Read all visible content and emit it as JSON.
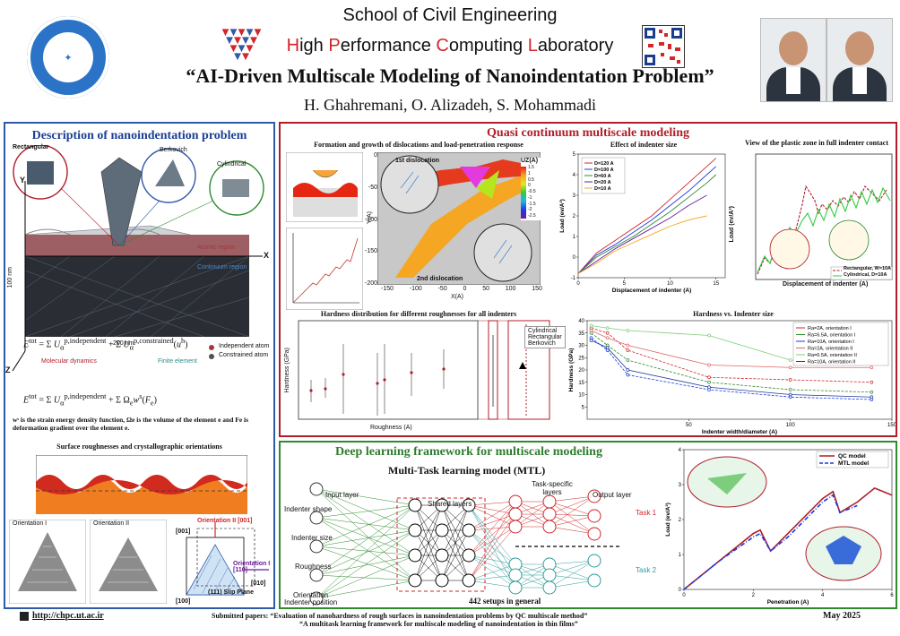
{
  "header": {
    "school": "School of Civil Engineering",
    "lab_parts": [
      {
        "cap": "H",
        "rest": "igh "
      },
      {
        "cap": "P",
        "rest": "erformance "
      },
      {
        "cap": "C",
        "rest": "omputing "
      },
      {
        "cap": "L",
        "rest": "aboratory"
      }
    ],
    "title": "“AI-Driven Multiscale Modeling of Nanoindentation Problem”",
    "authors": "H. Ghahremani, O. Alizadeh, S. Mohammadi"
  },
  "left_panel": {
    "title": "Description of nanoindentation problem",
    "indenters": [
      "Rectangular",
      "Berkovich",
      "Cylindrical"
    ],
    "regions": [
      "Atomic region",
      "Continuum region"
    ],
    "dims": {
      "height": "100 nm",
      "width": "200 nm"
    },
    "legend": [
      "Independent atom",
      "Constrained atom"
    ],
    "axis": {
      "x": "X",
      "y": "Y",
      "z": "Z"
    },
    "eq_labels": {
      "md": "Molecular dynamics",
      "fe": "Finite element"
    },
    "eq_note": "wˢ is the strain energy density function, Ωe is the volume of the element e and Fe is deformation gradient over the element e.",
    "rough_title": "Surface roughnesses and crystallographic orientations",
    "orientations": [
      "Orientation I",
      "Orientation II"
    ],
    "miller": {
      "o2": "Orientation II [001]",
      "o1": "Orientation I [110]",
      "a": "[001]",
      "b": "[010]",
      "c": "[100]",
      "slip": "(111) Slip Plane"
    }
  },
  "qc_panel": {
    "title": "Quasi continuum multiscale modeling",
    "sub1": "Formation and growth of dislocations and load-penetration response",
    "sub1_labels": {
      "d1": "1st dislocation",
      "d2": "2nd dislocation",
      "colorbar": "UZ(A)",
      "xlabel": "X(A)",
      "ylabel": "Y(A)"
    },
    "sub1_colorbar": [
      "1.5",
      "1",
      "0.5",
      "0",
      "-0.5",
      "-1",
      "-1.5",
      "-2",
      "-2.5"
    ],
    "sub1_xticks": [
      "-150",
      "-100",
      "-50",
      "0",
      "50",
      "100",
      "150"
    ],
    "sub1_yticks": [
      "0",
      "-50",
      "-100",
      "-150",
      "-200"
    ],
    "sub2": "Effect of indenter size",
    "sub2_legend": [
      "D=120 A",
      "D=100 A",
      "D=60 A",
      "D=20 A",
      "D=10 A"
    ],
    "sub2_xlabel": "Displacement of indenter (A)",
    "sub2_ylabel": "Load (ev/A²)",
    "sub3": "View of the plastic zone in full indenter contact",
    "sub3_legend": [
      "Rectangular, W=10A",
      "Cylindrical, D=10A"
    ],
    "sub3_xlabel": "Displacement of indenter (A)",
    "sub3_ylabel": "Load (ev/A²)",
    "sub4": "Hardness distribution for different roughnesses for all indenters",
    "sub4_legend": [
      "Cylindrical",
      "Rectangular",
      "Berkovich"
    ],
    "sub4_xlabel": "Roughness (A)",
    "sub4_ylabel": "Hardness (GPa)",
    "sub5": "Hardness vs. Indenter size",
    "sub5_legend": [
      "Ra=2A, orientation I",
      "Ra=6.5A, orientation I",
      "Ra=10A, orientation I",
      "Ra=2A, orientation II",
      "Ra=6.5A, orientation II",
      "Ra=10A, orientation II"
    ],
    "sub5_xlabel": "Indenter width/diameter (A)",
    "sub5_ylabel": "Hardness (GPa)"
  },
  "dl_panel": {
    "title": "Deep learning framework for multiscale modeling",
    "mtl_title": "Multi-Task learning model (MTL)",
    "input_layer": "Input layer",
    "shared_layers": "Shared layers",
    "task_layers": "Task-specific layers",
    "output_layer": "Output layer",
    "inputs": [
      "Indenter shape",
      "Indenter size",
      "Roughness",
      "Orientation",
      "Indenter position"
    ],
    "task1": "Task 1",
    "task2": "Task 2",
    "setups": "442 setups in general",
    "legend": [
      "QC model",
      "MTL model"
    ],
    "xlabel": "Penetration (A)",
    "ylabel": "Load (ev/A²)"
  },
  "footer": {
    "url": "http://chpc.ut.ac.ir",
    "submitted": "Submitted papers:",
    "paper1": "“Evaluation of nanohardness of rough surfaces in nanoindentation problems by QC multiscale method”",
    "paper2": "“A multitask learning framework for multiscale modeling of nanoindentation in thin films”",
    "date": "May 2025"
  },
  "colors": {
    "red": "#d1262a",
    "blue": "#2f5aa8",
    "green": "#2e8b2e",
    "maroon": "#b01e2a"
  },
  "chart_data": [
    {
      "type": "line",
      "title": "Effect of indenter size",
      "xlabel": "Displacement of indenter (A)",
      "ylabel": "Load (ev/A²)",
      "xlim": [
        0,
        16
      ],
      "ylim": [
        -1,
        5
      ],
      "series": [
        {
          "name": "D=120 A",
          "x": [
            0,
            2,
            4,
            6,
            8,
            10,
            12,
            14,
            15
          ],
          "values": [
            -0.8,
            0.2,
            0.8,
            1.4,
            2.0,
            2.8,
            3.6,
            4.4,
            4.8
          ]
        },
        {
          "name": "D=100 A",
          "x": [
            0,
            2,
            4,
            6,
            8,
            10,
            12,
            14,
            15
          ],
          "values": [
            -0.8,
            0.1,
            0.6,
            1.2,
            1.8,
            2.5,
            3.2,
            4.0,
            4.4
          ]
        },
        {
          "name": "D=60 A",
          "x": [
            0,
            2,
            4,
            6,
            8,
            10,
            12,
            14,
            15
          ],
          "values": [
            -0.8,
            0.0,
            0.5,
            1.0,
            1.6,
            2.2,
            2.9,
            3.6,
            4.0
          ]
        },
        {
          "name": "D=20 A",
          "x": [
            0,
            2,
            4,
            6,
            8,
            10,
            12,
            14
          ],
          "values": [
            -0.8,
            -0.2,
            0.4,
            0.9,
            1.4,
            1.9,
            2.5,
            3.0
          ]
        },
        {
          "name": "D=10 A",
          "x": [
            0,
            2,
            4,
            6,
            8,
            10,
            12,
            14
          ],
          "values": [
            -0.8,
            -0.3,
            0.3,
            0.7,
            1.1,
            1.5,
            1.8,
            2.0
          ]
        }
      ]
    },
    {
      "type": "line",
      "title": "Hardness vs. Indenter size",
      "xlabel": "Indenter width/diameter (A)",
      "ylabel": "Hardness (GPa)",
      "xlim": [
        0,
        150
      ],
      "ylim": [
        0,
        40
      ],
      "series": [
        {
          "name": "Ra=2A, orientation I",
          "x": [
            2,
            10,
            20,
            60,
            100,
            140
          ],
          "values": [
            37,
            35,
            28,
            17,
            16,
            15
          ]
        },
        {
          "name": "Ra=6.5A, orientation I",
          "x": [
            2,
            10,
            20,
            60,
            100,
            140
          ],
          "values": [
            35,
            30,
            24,
            15,
            12,
            11
          ]
        },
        {
          "name": "Ra=10A, orientation I",
          "x": [
            2,
            10,
            20,
            60,
            100,
            140
          ],
          "values": [
            33,
            28,
            18,
            12,
            9,
            8
          ]
        },
        {
          "name": "Ra=2A, orientation II",
          "x": [
            2,
            10,
            20,
            60,
            100,
            140
          ],
          "values": [
            36,
            33,
            30,
            22,
            21,
            21
          ]
        },
        {
          "name": "Ra=6.5A, orientation II",
          "x": [
            2,
            10,
            20,
            60,
            100,
            140
          ],
          "values": [
            38,
            37,
            36,
            34,
            24,
            23
          ]
        },
        {
          "name": "Ra=10A, orientation II",
          "x": [
            2,
            10,
            20,
            60,
            100,
            140
          ],
          "values": [
            32,
            29,
            20,
            13,
            10,
            9
          ]
        }
      ]
    },
    {
      "type": "line",
      "title": "",
      "xlabel": "Penetration (A)",
      "ylabel": "Load (ev/A²)",
      "xlim": [
        0,
        6
      ],
      "ylim": [
        0,
        4
      ],
      "series": [
        {
          "name": "QC model",
          "x": [
            0,
            1,
            2,
            2.2,
            2.5,
            3,
            4,
            4.3,
            4.5,
            5,
            5.5,
            6
          ],
          "values": [
            0,
            0.8,
            1.6,
            1.7,
            1.1,
            1.6,
            2.6,
            2.8,
            2.2,
            2.5,
            2.9,
            2.7
          ]
        },
        {
          "name": "MTL model",
          "x": [
            0,
            1,
            2,
            2.2,
            2.5,
            3,
            4,
            4.3,
            4.5,
            5
          ],
          "values": [
            0,
            0.8,
            1.5,
            1.6,
            1.1,
            1.5,
            2.5,
            2.7,
            2.2,
            2.4
          ]
        }
      ]
    }
  ]
}
